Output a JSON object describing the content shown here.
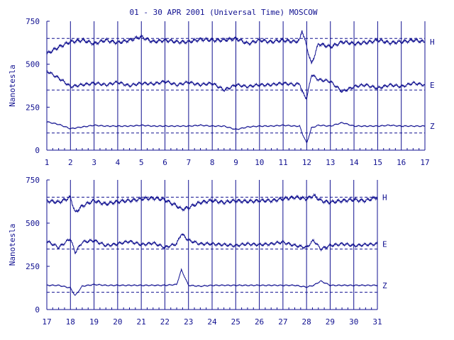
{
  "title": "01 - 30 APR 2001 (Universal Time) MOSCOW",
  "colors": {
    "ink": "#101090",
    "background": "#ffffff"
  },
  "chart_data": [
    {
      "type": "line",
      "ylabel": "Nanotesla",
      "xlim": [
        1,
        17
      ],
      "ylim": [
        0,
        750
      ],
      "x_ticks": [
        "1",
        "2",
        "3",
        "4",
        "5",
        "6",
        "7",
        "8",
        "9",
        "10",
        "11",
        "12",
        "13",
        "14",
        "15",
        "16",
        "17"
      ],
      "y_ticks": [
        "0",
        "250",
        "500",
        "750"
      ],
      "grid": "vertical lines at each day",
      "reference_levels": [
        650,
        350,
        100
      ],
      "series": [
        {
          "name": "H",
          "x": [
            1,
            1.5,
            2,
            2.5,
            3,
            3.5,
            4,
            4.5,
            5,
            5.5,
            6,
            6.5,
            7,
            7.5,
            8,
            8.5,
            9,
            9.5,
            10,
            10.5,
            11,
            11.5,
            11.7,
            11.8,
            12,
            12.2,
            12.5,
            13,
            13.5,
            14,
            14.5,
            15,
            15.5,
            16,
            16.5,
            17
          ],
          "values": [
            560,
            600,
            630,
            640,
            620,
            640,
            625,
            640,
            660,
            630,
            640,
            630,
            630,
            645,
            640,
            640,
            650,
            620,
            640,
            630,
            640,
            630,
            640,
            700,
            600,
            500,
            620,
            600,
            630,
            620,
            625,
            640,
            625,
            630,
            640,
            630
          ]
        },
        {
          "name": "E",
          "x": [
            1,
            1.5,
            2,
            2.5,
            3,
            3.5,
            4,
            4.5,
            5,
            5.5,
            6,
            6.5,
            7,
            7.5,
            8,
            8.5,
            9,
            9.5,
            10,
            10.5,
            11,
            11.5,
            11.7,
            11.8,
            12,
            12.2,
            12.5,
            13,
            13.5,
            14,
            14.5,
            15,
            15.5,
            16,
            16.5,
            17
          ],
          "values": [
            460,
            420,
            370,
            380,
            390,
            380,
            395,
            375,
            390,
            385,
            400,
            380,
            395,
            380,
            390,
            350,
            380,
            370,
            380,
            380,
            390,
            380,
            390,
            340,
            300,
            440,
            410,
            400,
            340,
            370,
            380,
            360,
            380,
            370,
            390,
            380
          ]
        },
        {
          "name": "Z",
          "x": [
            1,
            1.5,
            2,
            2.5,
            3,
            3.5,
            4,
            4.5,
            5,
            5.5,
            6,
            6.5,
            7,
            7.5,
            8,
            8.5,
            9,
            9.5,
            10,
            10.5,
            11,
            11.5,
            11.7,
            11.8,
            12,
            12.2,
            12.5,
            13,
            13.5,
            14,
            14.5,
            15,
            15.5,
            16,
            16.5,
            17
          ],
          "values": [
            165,
            150,
            125,
            135,
            145,
            140,
            140,
            140,
            145,
            140,
            140,
            140,
            140,
            145,
            140,
            140,
            120,
            135,
            140,
            140,
            145,
            140,
            140,
            100,
            40,
            130,
            145,
            140,
            160,
            140,
            140,
            140,
            145,
            140,
            140,
            140
          ]
        }
      ]
    },
    {
      "type": "line",
      "ylabel": "Nanotesla",
      "xlim": [
        17,
        31
      ],
      "ylim": [
        0,
        750
      ],
      "x_ticks": [
        "17",
        "18",
        "19",
        "20",
        "21",
        "22",
        "23",
        "24",
        "25",
        "26",
        "27",
        "28",
        "29",
        "30",
        "31"
      ],
      "y_ticks": [
        "0",
        "250",
        "500",
        "750"
      ],
      "grid": "vertical lines at each day",
      "reference_levels": [
        650,
        350,
        100
      ],
      "series": [
        {
          "name": "H",
          "x": [
            17,
            17.5,
            18,
            18.2,
            18.5,
            19,
            19.5,
            20,
            20.5,
            21,
            21.5,
            22,
            22.5,
            22.7,
            23,
            23.5,
            24,
            24.5,
            25,
            25.5,
            26,
            26.5,
            27,
            27.5,
            28,
            28.3,
            28.6,
            29,
            29.5,
            30,
            30.5,
            31
          ],
          "values": [
            630,
            620,
            650,
            560,
            600,
            630,
            610,
            625,
            630,
            640,
            645,
            635,
            600,
            580,
            590,
            620,
            630,
            620,
            630,
            625,
            630,
            630,
            640,
            650,
            640,
            660,
            630,
            620,
            630,
            635,
            630,
            650
          ]
        },
        {
          "name": "E",
          "x": [
            17,
            17.5,
            18,
            18.2,
            18.5,
            19,
            19.5,
            20,
            20.5,
            21,
            21.5,
            22,
            22.5,
            22.7,
            23,
            23.5,
            24,
            24.5,
            25,
            25.5,
            26,
            26.5,
            27,
            27.5,
            28,
            28.3,
            28.6,
            29,
            29.5,
            30,
            30.5,
            31
          ],
          "values": [
            395,
            360,
            410,
            330,
            390,
            400,
            370,
            380,
            395,
            375,
            385,
            360,
            380,
            440,
            400,
            380,
            380,
            375,
            370,
            380,
            375,
            380,
            390,
            370,
            360,
            400,
            350,
            370,
            380,
            370,
            375,
            380
          ]
        },
        {
          "name": "Z",
          "x": [
            17,
            17.5,
            18,
            18.2,
            18.5,
            19,
            19.5,
            20,
            20.5,
            21,
            21.5,
            22,
            22.5,
            22.7,
            23,
            23.5,
            24,
            24.5,
            25,
            25.5,
            26,
            26.5,
            27,
            27.5,
            28,
            28.3,
            28.6,
            29,
            29.5,
            30,
            30.5,
            31
          ],
          "values": [
            140,
            140,
            125,
            80,
            135,
            145,
            140,
            140,
            140,
            140,
            140,
            140,
            145,
            230,
            140,
            135,
            140,
            140,
            140,
            140,
            140,
            140,
            140,
            140,
            130,
            140,
            165,
            140,
            140,
            140,
            140,
            140
          ]
        }
      ]
    }
  ]
}
